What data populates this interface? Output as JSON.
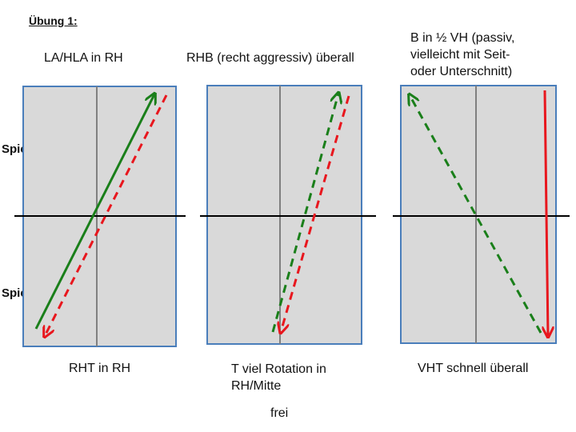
{
  "title": "Übung 1:",
  "players": {
    "upper": "Spieler B",
    "lower": "Spieler A"
  },
  "tables": [
    {
      "top_label": [
        "LA/HLA in RH"
      ],
      "bottom_label": [
        "RHT in RH"
      ],
      "arrows": [
        {
          "name": "green-solid-arrow",
          "color": "#1a7f1a",
          "style": "solid"
        },
        {
          "name": "red-dashed-arrow",
          "color": "#e8171e",
          "style": "dashed"
        }
      ]
    },
    {
      "top_label": [
        "RHB (recht aggressiv) überall"
      ],
      "bottom_label": [
        "T viel Rotation in",
        "RH/Mitte"
      ],
      "arrows": [
        {
          "name": "green-dashed-arrow",
          "color": "#1a7f1a",
          "style": "dashed"
        },
        {
          "name": "red-dashed-arrow",
          "color": "#e8171e",
          "style": "dashed"
        }
      ]
    },
    {
      "top_label": [
        "B in ½ VH (passiv,",
        "vielleicht mit Seit-",
        "oder Unterschnitt)"
      ],
      "bottom_label": [
        "VHT schnell überall"
      ],
      "arrows": [
        {
          "name": "green-dashed-arrow",
          "color": "#1a7f1a",
          "style": "dashed"
        },
        {
          "name": "red-solid-arrow",
          "color": "#e8171e",
          "style": "solid"
        }
      ]
    }
  ],
  "footer": "frei",
  "colors": {
    "table_fill": "#d9d9d9",
    "table_border": "#4a7ebb",
    "net": "#000000",
    "center_line": "#808080"
  }
}
